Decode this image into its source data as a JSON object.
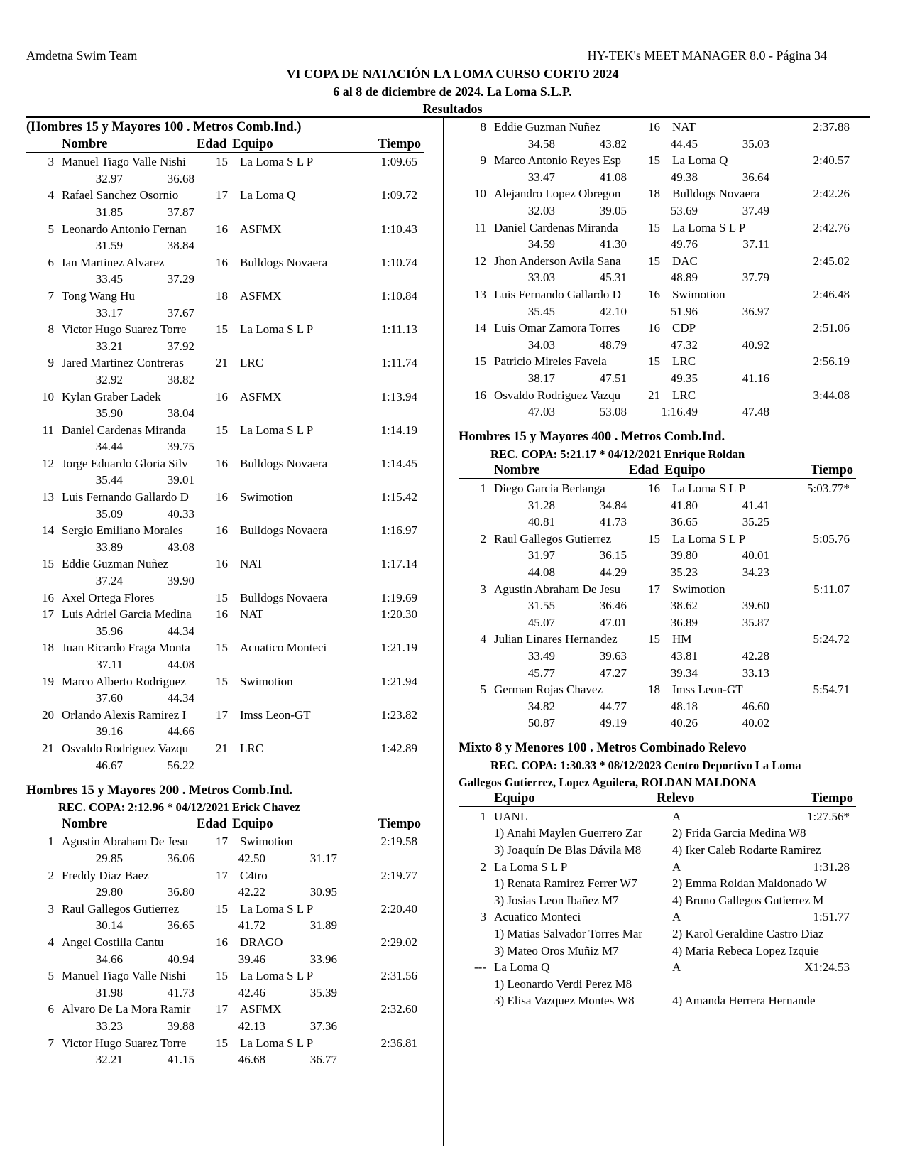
{
  "page_header": {
    "team": "Amdetna Swim Team",
    "software": "HY-TEK's MEET MANAGER 8.0 - Página 34",
    "meet_title": "VI COPA DE NATACIÓN LA LOMA CURSO CORTO 2024",
    "meet_dates": "6 al 8 de diciembre de 2024. La Loma S.L.P.",
    "section": "Resultados"
  },
  "headers": {
    "individual": {
      "place": "",
      "name": "Nombre",
      "age": "Edad",
      "team": "Equipo",
      "time": "Tiempo"
    },
    "relay": {
      "team": "Equipo",
      "relay": "Relevo",
      "time": "Tiempo"
    }
  },
  "columns": [
    {
      "blocks": [
        {
          "type": "individual",
          "title": "(Hombres 15 y Mayores 100 . Metros Comb.Ind.)",
          "show_headers": true,
          "entries": [
            {
              "place": "3",
              "name": "Manuel Tiago Valle Nishi",
              "age": "15",
              "team": "La Loma S L P",
              "time": "1:09.65",
              "splits": [
                "32.97",
                "36.68"
              ]
            },
            {
              "place": "4",
              "name": "Rafael Sanchez Osornio",
              "age": "17",
              "team": "La Loma Q",
              "time": "1:09.72",
              "splits": [
                "31.85",
                "37.87"
              ]
            },
            {
              "place": "5",
              "name": "Leonardo Antonio Fernan",
              "age": "16",
              "team": "ASFMX",
              "time": "1:10.43",
              "splits": [
                "31.59",
                "38.84"
              ]
            },
            {
              "place": "6",
              "name": "Ian Martinez Alvarez",
              "age": "16",
              "team": "Bulldogs Novaera",
              "time": "1:10.74",
              "splits": [
                "33.45",
                "37.29"
              ]
            },
            {
              "place": "7",
              "name": "Tong Wang Hu",
              "age": "18",
              "team": "ASFMX",
              "time": "1:10.84",
              "splits": [
                "33.17",
                "37.67"
              ]
            },
            {
              "place": "8",
              "name": "Victor Hugo Suarez Torre",
              "age": "15",
              "team": "La Loma S L P",
              "time": "1:11.13",
              "splits": [
                "33.21",
                "37.92"
              ]
            },
            {
              "place": "9",
              "name": "Jared Martinez Contreras",
              "age": "21",
              "team": "LRC",
              "time": "1:11.74",
              "splits": [
                "32.92",
                "38.82"
              ]
            },
            {
              "place": "10",
              "name": "Kylan Graber Ladek",
              "age": "16",
              "team": "ASFMX",
              "time": "1:13.94",
              "splits": [
                "35.90",
                "38.04"
              ]
            },
            {
              "place": "11",
              "name": "Daniel Cardenas Miranda",
              "age": "15",
              "team": "La Loma S L P",
              "time": "1:14.19",
              "splits": [
                "34.44",
                "39.75"
              ]
            },
            {
              "place": "12",
              "name": "Jorge Eduardo Gloria Silv",
              "age": "16",
              "team": "Bulldogs Novaera",
              "time": "1:14.45",
              "splits": [
                "35.44",
                "39.01"
              ]
            },
            {
              "place": "13",
              "name": "Luis Fernando Gallardo D",
              "age": "16",
              "team": "Swimotion",
              "time": "1:15.42",
              "splits": [
                "35.09",
                "40.33"
              ]
            },
            {
              "place": "14",
              "name": "Sergio Emiliano Morales",
              "age": "16",
              "team": "Bulldogs Novaera",
              "time": "1:16.97",
              "splits": [
                "33.89",
                "43.08"
              ]
            },
            {
              "place": "15",
              "name": "Eddie Guzman Nuñez",
              "age": "16",
              "team": "NAT",
              "time": "1:17.14",
              "splits": [
                "37.24",
                "39.90"
              ]
            },
            {
              "place": "16",
              "name": "Axel Ortega Flores",
              "age": "15",
              "team": "Bulldogs Novaera",
              "time": "1:19.69",
              "splits": []
            },
            {
              "place": "17",
              "name": "Luis Adriel Garcia Medina",
              "age": "16",
              "team": "NAT",
              "time": "1:20.30",
              "splits": [
                "35.96",
                "44.34"
              ]
            },
            {
              "place": "18",
              "name": "Juan Ricardo Fraga Monta",
              "age": "15",
              "team": "Acuatico Monteci",
              "time": "1:21.19",
              "splits": [
                "37.11",
                "44.08"
              ]
            },
            {
              "place": "19",
              "name": "Marco Alberto Rodriguez",
              "age": "15",
              "team": "Swimotion",
              "time": "1:21.94",
              "splits": [
                "37.60",
                "44.34"
              ]
            },
            {
              "place": "20",
              "name": "Orlando Alexis Ramirez I",
              "age": "17",
              "team": "Imss Leon-GT",
              "time": "1:23.82",
              "splits": [
                "39.16",
                "44.66"
              ]
            },
            {
              "place": "21",
              "name": "Osvaldo Rodriguez Vazqu",
              "age": "21",
              "team": "LRC",
              "time": "1:42.89",
              "splits": [
                "46.67",
                "56.22"
              ]
            }
          ]
        },
        {
          "type": "individual",
          "title": "Hombres 15 y Mayores 200 . Metros Comb.Ind.",
          "record": "REC. COPA:  2:12.96  *  04/12/2021 Erick Chavez",
          "show_headers": true,
          "entries": [
            {
              "place": "1",
              "name": "Agustin Abraham De Jesu",
              "age": "17",
              "team": "Swimotion",
              "time": "2:19.58",
              "splits": [
                "29.85",
                "36.06",
                "42.50",
                "31.17"
              ]
            },
            {
              "place": "2",
              "name": "Freddy Diaz Baez",
              "age": "17",
              "team": "C4tro",
              "time": "2:19.77",
              "splits": [
                "29.80",
                "36.80",
                "42.22",
                "30.95"
              ]
            },
            {
              "place": "3",
              "name": "Raul Gallegos Gutierrez",
              "age": "15",
              "team": "La Loma S L P",
              "time": "2:20.40",
              "splits": [
                "30.14",
                "36.65",
                "41.72",
                "31.89"
              ]
            },
            {
              "place": "4",
              "name": "Angel Costilla Cantu",
              "age": "16",
              "team": "DRAGO",
              "time": "2:29.02",
              "splits": [
                "34.66",
                "40.94",
                "39.46",
                "33.96"
              ]
            },
            {
              "place": "5",
              "name": "Manuel Tiago Valle Nishi",
              "age": "15",
              "team": "La Loma S L P",
              "time": "2:31.56",
              "splits": [
                "31.98",
                "41.73",
                "42.46",
                "35.39"
              ]
            },
            {
              "place": "6",
              "name": "Alvaro De La Mora Ramir",
              "age": "17",
              "team": "ASFMX",
              "time": "2:32.60",
              "splits": [
                "33.23",
                "39.88",
                "42.13",
                "37.36"
              ]
            },
            {
              "place": "7",
              "name": "Victor Hugo Suarez Torre",
              "age": "15",
              "team": "La Loma S L P",
              "time": "2:36.81",
              "splits": [
                "32.21",
                "41.15",
                "46.68",
                "36.77"
              ]
            }
          ]
        }
      ]
    },
    {
      "blocks": [
        {
          "type": "individual",
          "show_headers": false,
          "entries": [
            {
              "place": "8",
              "name": "Eddie Guzman Nuñez",
              "age": "16",
              "team": "NAT",
              "time": "2:37.88",
              "splits": [
                "34.58",
                "43.82",
                "44.45",
                "35.03"
              ]
            },
            {
              "place": "9",
              "name": "Marco Antonio Reyes Esp",
              "age": "15",
              "team": "La Loma Q",
              "time": "2:40.57",
              "splits": [
                "33.47",
                "41.08",
                "49.38",
                "36.64"
              ]
            },
            {
              "place": "10",
              "name": "Alejandro Lopez Obregon",
              "age": "18",
              "team": "Bulldogs Novaera",
              "time": "2:42.26",
              "splits": [
                "32.03",
                "39.05",
                "53.69",
                "37.49"
              ]
            },
            {
              "place": "11",
              "name": "Daniel Cardenas Miranda",
              "age": "15",
              "team": "La Loma S L P",
              "time": "2:42.76",
              "splits": [
                "34.59",
                "41.30",
                "49.76",
                "37.11"
              ]
            },
            {
              "place": "12",
              "name": "Jhon Anderson Avila Sana",
              "age": "15",
              "team": "DAC",
              "time": "2:45.02",
              "splits": [
                "33.03",
                "45.31",
                "48.89",
                "37.79"
              ]
            },
            {
              "place": "13",
              "name": "Luis Fernando Gallardo D",
              "age": "16",
              "team": "Swimotion",
              "time": "2:46.48",
              "splits": [
                "35.45",
                "42.10",
                "51.96",
                "36.97"
              ]
            },
            {
              "place": "14",
              "name": "Luis Omar Zamora Torres",
              "age": "16",
              "team": "CDP",
              "time": "2:51.06",
              "splits": [
                "34.03",
                "48.79",
                "47.32",
                "40.92"
              ]
            },
            {
              "place": "15",
              "name": "Patricio Mireles Favela",
              "age": "15",
              "team": "LRC",
              "time": "2:56.19",
              "splits": [
                "38.17",
                "47.51",
                "49.35",
                "41.16"
              ]
            },
            {
              "place": "16",
              "name": "Osvaldo Rodriguez Vazqu",
              "age": "21",
              "team": "LRC",
              "time": "3:44.08",
              "splits": [
                "47.03",
                "53.08",
                "1:16.49",
                "47.48"
              ]
            }
          ]
        },
        {
          "type": "individual",
          "title": "Hombres 15 y Mayores 400 . Metros Comb.Ind.",
          "record": "REC. COPA:  5:21.17  *  04/12/2021 Enrique Roldan",
          "show_headers": true,
          "entries": [
            {
              "place": "1",
              "name": "Diego Garcia Berlanga",
              "age": "16",
              "team": "La Loma S L P",
              "time": "5:03.77*",
              "splits": [
                "31.28",
                "34.84",
                "41.80",
                "41.41",
                "40.81",
                "41.73",
                "36.65",
                "35.25"
              ]
            },
            {
              "place": "2",
              "name": "Raul Gallegos Gutierrez",
              "age": "15",
              "team": "La Loma S L P",
              "time": "5:05.76",
              "splits": [
                "31.97",
                "36.15",
                "39.80",
                "40.01",
                "44.08",
                "44.29",
                "35.23",
                "34.23"
              ]
            },
            {
              "place": "3",
              "name": "Agustin Abraham De Jesu",
              "age": "17",
              "team": "Swimotion",
              "time": "5:11.07",
              "splits": [
                "31.55",
                "36.46",
                "38.62",
                "39.60",
                "45.07",
                "47.01",
                "36.89",
                "35.87"
              ]
            },
            {
              "place": "4",
              "name": "Julian Linares Hernandez",
              "age": "15",
              "team": "HM",
              "time": "5:24.72",
              "splits": [
                "33.49",
                "39.63",
                "43.81",
                "42.28",
                "45.77",
                "47.27",
                "39.34",
                "33.13"
              ]
            },
            {
              "place": "5",
              "name": "German Rojas Chavez",
              "age": "18",
              "team": "Imss Leon-GT",
              "time": "5:54.71",
              "splits": [
                "34.82",
                "44.77",
                "48.18",
                "46.60",
                "50.87",
                "49.19",
                "40.26",
                "40.02"
              ]
            }
          ]
        },
        {
          "type": "relay",
          "title": "Mixto 8 y Menores 100 . Metros Combinado Relevo",
          "record": "REC. COPA:  1:30.33  *  08/12/2023 Centro Deportivo La Loma",
          "record_holders": "Gallegos Gutierrez, Lopez Aguilera, ROLDAN MALDONA",
          "show_headers": true,
          "entries": [
            {
              "place": "1",
              "team": "UANL",
              "relay": "A",
              "time": "1:27.56*",
              "swimmers": [
                "1) Anahi Maylen Guerrero Zar",
                "2) Frida Garcia Medina W8",
                "3) Joaquín De Blas Dávila M8",
                "4) Iker Caleb Rodarte Ramirez"
              ]
            },
            {
              "place": "2",
              "team": "La Loma S L P",
              "relay": "A",
              "time": "1:31.28",
              "swimmers": [
                "1) Renata Ramirez Ferrer W7",
                "2) Emma Roldan Maldonado W",
                "3) Josias Leon Ibañez M7",
                "4) Bruno Gallegos Gutierrez M"
              ]
            },
            {
              "place": "3",
              "team": "Acuatico Monteci",
              "relay": "A",
              "time": "1:51.77",
              "swimmers": [
                "1) Matias Salvador Torres Mar",
                "2) Karol Geraldine Castro Diaz",
                "3) Mateo Oros Muñiz M7",
                "4) Maria Rebeca Lopez Izquie"
              ]
            },
            {
              "place": "---",
              "team": "La Loma Q",
              "relay": "A",
              "time": "X1:24.53",
              "swimmers": [
                "1) Leonardo Verdi Perez M8",
                "",
                "3) Elisa Vazquez Montes W8",
                "4) Amanda Herrera Hernande"
              ]
            }
          ]
        }
      ]
    }
  ]
}
